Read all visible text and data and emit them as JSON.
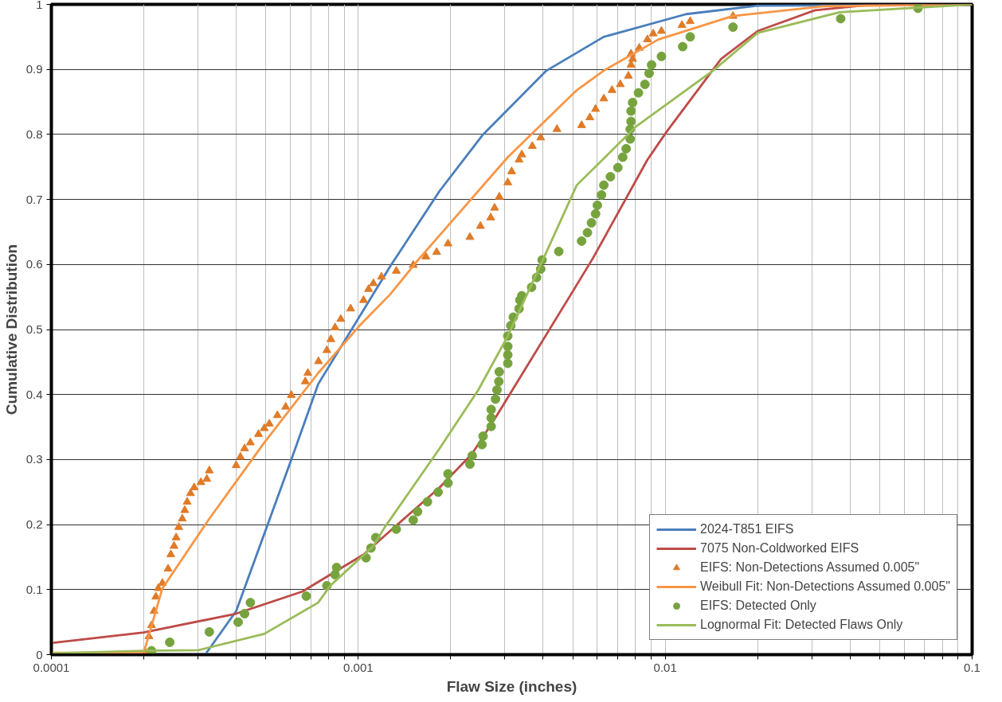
{
  "chart_data": {
    "type": "line",
    "xlabel": "Flaw Size (inches)",
    "ylabel": "Cumulative Distribution",
    "log": "x",
    "grid": true,
    "legend": "bottom right",
    "xlim": [
      0.0001,
      0.1
    ],
    "ylim": [
      0,
      1
    ],
    "xticks": [
      0.0001,
      {
        "value": 0.0002,
        "label": null
      },
      {
        "value": 0.0003,
        "label": null
      },
      {
        "value": 0.0004,
        "label": null
      },
      {
        "value": 0.0005,
        "label": null
      },
      {
        "value": 0.0006,
        "label": null
      },
      {
        "value": 0.0007,
        "label": null
      },
      {
        "value": 0.0008,
        "label": null
      },
      {
        "value": 0.0009,
        "label": null
      },
      0.001,
      {
        "value": 0.002,
        "label": null
      },
      {
        "value": 0.003,
        "label": null
      },
      {
        "value": 0.004,
        "label": null
      },
      {
        "value": 0.005,
        "label": null
      },
      {
        "value": 0.006,
        "label": null
      },
      {
        "value": 0.007,
        "label": null
      },
      {
        "value": 0.008,
        "label": null
      },
      {
        "value": 0.009,
        "label": null
      },
      0.01,
      {
        "value": 0.02,
        "label": null
      },
      {
        "value": 0.03,
        "label": null
      },
      {
        "value": 0.04,
        "label": null
      },
      {
        "value": 0.05,
        "label": null
      },
      {
        "value": 0.06,
        "label": null
      },
      {
        "value": 0.07,
        "label": null
      },
      {
        "value": 0.08,
        "label": null
      },
      {
        "value": 0.09,
        "label": null
      },
      0.1
    ],
    "yticks": [
      0,
      0.1,
      0.2,
      0.3,
      0.4,
      0.5,
      0.6,
      0.7,
      0.8,
      0.9,
      1
    ],
    "series": [
      {
        "name": "2024-T851 EIFS",
        "marker": "none",
        "color": "#4a7ebb",
        "x": [
          0.000317,
          0.0004,
          0.000605,
          0.00074,
          0.00127,
          0.00184,
          0.00255,
          0.0041,
          0.0063,
          0.0117,
          0.02,
          0.1
        ],
        "values": [
          0,
          0.067,
          0.3,
          0.416,
          0.597,
          0.713,
          0.8,
          0.898,
          0.95,
          0.985,
          0.998,
          1
        ]
      },
      {
        "name": "7075 Non-Coldworked EIFS",
        "marker": "none",
        "color": "#be4b48",
        "x": [
          0.0001,
          0.0002,
          0.0004,
          0.000657,
          0.00104,
          0.00122,
          0.00184,
          0.00235,
          0.00283,
          0.00314,
          0.00493,
          0.00582,
          0.00875,
          0.0101,
          0.0152,
          0.02,
          0.0308,
          0.0454,
          0.1
        ],
        "values": [
          0.018,
          0.034,
          0.063,
          0.097,
          0.154,
          0.183,
          0.257,
          0.309,
          0.368,
          0.403,
          0.554,
          0.61,
          0.761,
          0.804,
          0.916,
          0.959,
          0.991,
          0.999,
          1
        ]
      },
      {
        "name": "EIFS: Non-Detections Assumed 0.005\"",
        "type": "scatter",
        "marker": "triangle",
        "color": "#e07b28",
        "x": [
          0.000203,
          0.000208,
          0.000212,
          0.000216,
          0.000219,
          0.000223,
          0.00023,
          0.00024,
          0.000245,
          0.000251,
          0.000255,
          0.00026,
          0.000267,
          0.000272,
          0.000277,
          0.000284,
          0.000292,
          0.000307,
          0.000321,
          0.000327,
          0.0004,
          0.000413,
          0.000426,
          0.000445,
          0.000473,
          0.000494,
          0.000513,
          0.000545,
          0.00058,
          0.000605,
          0.000672,
          0.000685,
          0.000742,
          0.00079,
          0.000814,
          0.00084,
          0.000877,
          0.000944,
          0.00104,
          0.00108,
          0.00112,
          0.00119,
          0.00133,
          0.00151,
          0.00166,
          0.0018,
          0.00196,
          0.00231,
          0.0025,
          0.0027,
          0.00278,
          0.00288,
          0.00307,
          0.00316,
          0.00334,
          0.00341,
          0.00369,
          0.00393,
          0.00444,
          0.00534,
          0.00568,
          0.00593,
          0.00631,
          0.00671,
          0.00714,
          0.00759,
          0.00774,
          0.00783,
          0.00774,
          0.00823,
          0.00875,
          0.00914,
          0.00972,
          0.01134,
          0.01206,
          0.01663
        ],
        "values": [
          0.003,
          0.028,
          0.045,
          0.067,
          0.089,
          0.102,
          0.11,
          0.132,
          0.154,
          0.167,
          0.18,
          0.196,
          0.209,
          0.222,
          0.235,
          0.248,
          0.257,
          0.265,
          0.27,
          0.283,
          0.291,
          0.304,
          0.317,
          0.326,
          0.339,
          0.348,
          0.355,
          0.368,
          0.381,
          0.399,
          0.42,
          0.433,
          0.451,
          0.468,
          0.485,
          0.503,
          0.516,
          0.532,
          0.545,
          0.562,
          0.571,
          0.581,
          0.59,
          0.599,
          0.612,
          0.619,
          0.632,
          0.642,
          0.659,
          0.672,
          0.687,
          0.704,
          0.726,
          0.743,
          0.761,
          0.769,
          0.782,
          0.795,
          0.808,
          0.814,
          0.826,
          0.839,
          0.855,
          0.868,
          0.877,
          0.89,
          0.907,
          0.916,
          0.924,
          0.933,
          0.946,
          0.955,
          0.959,
          0.968,
          0.974,
          0.982
        ]
      },
      {
        "name": "Weibull Fit: Non-Detections Assumed 0.005\"",
        "marker": "none",
        "color": "#f79646",
        "x": [
          0.0001,
          0.0002,
          0.00023,
          0.000327,
          0.000494,
          0.00074,
          0.00101,
          0.00127,
          0.00156,
          0.00307,
          0.00515,
          0.0063,
          0.0095,
          0.0166,
          0.0327,
          0.1
        ],
        "values": [
          0.003,
          0.003,
          0.102,
          0.209,
          0.326,
          0.433,
          0.506,
          0.554,
          0.606,
          0.765,
          0.868,
          0.898,
          0.946,
          0.982,
          0.997,
          1
        ]
      },
      {
        "name": "EIFS: Detected Only",
        "type": "scatter",
        "marker": "circle",
        "color": "#77a33e",
        "x": [
          0.000212,
          0.000243,
          0.000327,
          0.000406,
          0.000426,
          0.000445,
          0.000677,
          0.00079,
          0.00084,
          0.00085,
          0.00106,
          0.0011,
          0.00114,
          0.00133,
          0.00151,
          0.00156,
          0.00168,
          0.00182,
          0.00196,
          0.00196,
          0.00231,
          0.00235,
          0.00253,
          0.00255,
          0.00271,
          0.00271,
          0.00271,
          0.0028,
          0.00283,
          0.00287,
          0.00288,
          0.00307,
          0.00307,
          0.00307,
          0.00307,
          0.00314,
          0.0032,
          0.00334,
          0.00336,
          0.00341,
          0.00367,
          0.00381,
          0.00393,
          0.00397,
          0.0045,
          0.00534,
          0.00558,
          0.00575,
          0.00593,
          0.00601,
          0.0062,
          0.00631,
          0.00663,
          0.00701,
          0.00727,
          0.00746,
          0.00769,
          0.00769,
          0.00774,
          0.00774,
          0.00783,
          0.00818,
          0.00859,
          0.00886,
          0.00903,
          0.00972,
          0.0114,
          0.01206,
          0.01663,
          0.0373,
          0.0666
        ],
        "values": [
          0.006,
          0.019,
          0.035,
          0.05,
          0.063,
          0.08,
          0.09,
          0.106,
          0.123,
          0.134,
          0.149,
          0.164,
          0.18,
          0.193,
          0.207,
          0.22,
          0.235,
          0.25,
          0.264,
          0.278,
          0.293,
          0.306,
          0.323,
          0.336,
          0.351,
          0.364,
          0.377,
          0.393,
          0.407,
          0.42,
          0.435,
          0.448,
          0.461,
          0.474,
          0.49,
          0.506,
          0.519,
          0.532,
          0.545,
          0.552,
          0.565,
          0.58,
          0.593,
          0.607,
          0.62,
          0.636,
          0.649,
          0.664,
          0.678,
          0.691,
          0.707,
          0.722,
          0.735,
          0.749,
          0.765,
          0.778,
          0.793,
          0.808,
          0.82,
          0.836,
          0.849,
          0.864,
          0.877,
          0.894,
          0.907,
          0.92,
          0.935,
          0.95,
          0.965,
          0.978,
          0.994
        ]
      },
      {
        "name": "Lognormal Fit: Detected Flaws Only",
        "marker": "none",
        "color": "#9bbb59",
        "x": [
          0.0001,
          0.0002,
          0.000302,
          0.000494,
          0.00074,
          0.00081,
          0.00112,
          0.00122,
          0.00184,
          0.00246,
          0.00307,
          0.00402,
          0.00515,
          0.00807,
          0.0143,
          0.02,
          0.037,
          0.1
        ],
        "values": [
          0.002,
          0.006,
          0.007,
          0.032,
          0.08,
          0.106,
          0.167,
          0.196,
          0.317,
          0.407,
          0.49,
          0.61,
          0.722,
          0.813,
          0.898,
          0.956,
          0.988,
          1
        ]
      }
    ]
  }
}
